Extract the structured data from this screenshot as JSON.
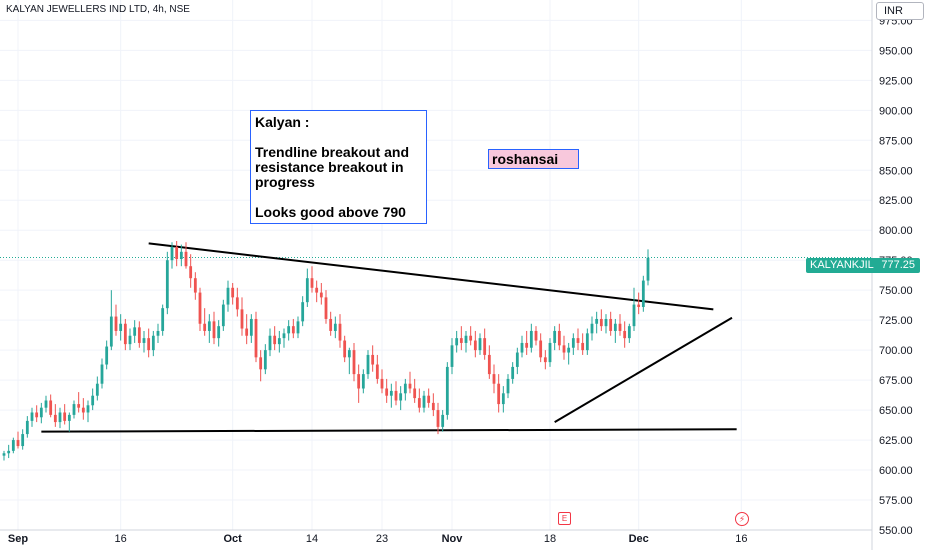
{
  "header": {
    "title": "KALYAN JEWELLERS IND LTD, 4h, NSE"
  },
  "currency": "INR",
  "annotation": {
    "lines": [
      "Kalyan :",
      "",
      "Trendline breakout and",
      "resistance breakout in",
      "progress",
      "",
      "Looks good above 790"
    ]
  },
  "author_label": "roshansai",
  "ticker": {
    "symbol": "KALYANKJIL",
    "price": "777.25"
  },
  "icons": {
    "earnings": "earnings-e-icon",
    "dividend": "dividend-lightning-icon"
  },
  "colors": {
    "up": "#26a69a",
    "down": "#ef5350",
    "tag": "#22ab94",
    "box_border": "#2962ff",
    "author_bg": "#f8c8dc"
  },
  "chart_data": {
    "type": "candlestick",
    "y_range": [
      550,
      992
    ],
    "x_range": [
      0,
      186
    ],
    "y_ticks": [
      "550.00",
      "575.00",
      "600.00",
      "625.00",
      "650.00",
      "675.00",
      "700.00",
      "725.00",
      "750.00",
      "775.00",
      "800.00",
      "825.00",
      "850.00",
      "875.00",
      "900.00",
      "925.00",
      "950.00",
      "975.00"
    ],
    "x_ticks": [
      {
        "label": "Sep",
        "index": 3
      },
      {
        "label": "16",
        "index": 25
      },
      {
        "label": "Oct",
        "index": 49
      },
      {
        "label": "14",
        "index": 66
      },
      {
        "label": "23",
        "index": 81
      },
      {
        "label": "Nov",
        "index": 96
      },
      {
        "label": "18",
        "index": 117
      },
      {
        "label": "Dec",
        "index": 136
      },
      {
        "label": "16",
        "index": 158
      }
    ],
    "last_price": 777.25,
    "candles": [
      [
        612,
        616,
        608,
        614
      ],
      [
        614,
        621,
        610,
        616
      ],
      [
        616,
        627,
        614,
        625
      ],
      [
        625,
        632,
        618,
        620
      ],
      [
        620,
        634,
        617,
        630
      ],
      [
        630,
        645,
        627,
        641
      ],
      [
        641,
        652,
        636,
        648
      ],
      [
        648,
        654,
        640,
        644
      ],
      [
        644,
        656,
        639,
        652
      ],
      [
        652,
        662,
        648,
        658
      ],
      [
        658,
        663,
        644,
        646
      ],
      [
        646,
        655,
        636,
        640
      ],
      [
        640,
        652,
        635,
        648
      ],
      [
        648,
        655,
        638,
        641
      ],
      [
        641,
        648,
        632,
        646
      ],
      [
        646,
        658,
        643,
        655
      ],
      [
        655,
        665,
        648,
        652
      ],
      [
        652,
        660,
        642,
        648
      ],
      [
        648,
        658,
        640,
        654
      ],
      [
        654,
        668,
        650,
        662
      ],
      [
        662,
        678,
        658,
        672
      ],
      [
        672,
        693,
        668,
        688
      ],
      [
        688,
        708,
        684,
        703
      ],
      [
        703,
        750,
        700,
        728
      ],
      [
        728,
        738,
        712,
        716
      ],
      [
        716,
        730,
        708,
        722
      ],
      [
        722,
        726,
        700,
        705
      ],
      [
        705,
        718,
        700,
        712
      ],
      [
        712,
        725,
        706,
        719
      ],
      [
        719,
        724,
        702,
        706
      ],
      [
        706,
        716,
        698,
        710
      ],
      [
        710,
        718,
        694,
        700
      ],
      [
        700,
        716,
        695,
        712
      ],
      [
        712,
        722,
        706,
        716
      ],
      [
        716,
        738,
        712,
        735
      ],
      [
        735,
        782,
        730,
        775
      ],
      [
        775,
        790,
        768,
        786
      ],
      [
        786,
        791,
        770,
        776
      ],
      [
        776,
        788,
        770,
        782
      ],
      [
        782,
        790,
        768,
        770
      ],
      [
        770,
        780,
        752,
        760
      ],
      [
        760,
        765,
        742,
        748
      ],
      [
        748,
        752,
        716,
        722
      ],
      [
        722,
        735,
        712,
        716
      ],
      [
        716,
        730,
        706,
        724
      ],
      [
        724,
        732,
        705,
        710
      ],
      [
        710,
        725,
        703,
        720
      ],
      [
        720,
        742,
        716,
        738
      ],
      [
        738,
        758,
        732,
        752
      ],
      [
        752,
        756,
        738,
        744
      ],
      [
        744,
        752,
        728,
        734
      ],
      [
        734,
        744,
        712,
        718
      ],
      [
        718,
        730,
        705,
        712
      ],
      [
        712,
        730,
        706,
        726
      ],
      [
        726,
        732,
        690,
        694
      ],
      [
        694,
        700,
        674,
        684
      ],
      [
        684,
        705,
        680,
        700
      ],
      [
        700,
        718,
        695,
        712
      ],
      [
        712,
        720,
        700,
        705
      ],
      [
        705,
        716,
        698,
        710
      ],
      [
        710,
        718,
        702,
        714
      ],
      [
        714,
        725,
        708,
        720
      ],
      [
        720,
        726,
        710,
        714
      ],
      [
        714,
        728,
        710,
        724
      ],
      [
        724,
        745,
        720,
        740
      ],
      [
        740,
        768,
        736,
        760
      ],
      [
        760,
        770,
        748,
        752
      ],
      [
        752,
        758,
        740,
        748
      ],
      [
        748,
        756,
        738,
        744
      ],
      [
        744,
        750,
        722,
        726
      ],
      [
        726,
        732,
        712,
        716
      ],
      [
        716,
        728,
        710,
        722
      ],
      [
        722,
        730,
        702,
        708
      ],
      [
        708,
        712,
        690,
        694
      ],
      [
        694,
        702,
        680,
        700
      ],
      [
        700,
        706,
        674,
        680
      ],
      [
        680,
        688,
        656,
        668
      ],
      [
        668,
        684,
        664,
        680
      ],
      [
        680,
        700,
        676,
        696
      ],
      [
        696,
        704,
        682,
        688
      ],
      [
        688,
        696,
        672,
        676
      ],
      [
        676,
        684,
        664,
        668
      ],
      [
        668,
        676,
        656,
        662
      ],
      [
        662,
        672,
        652,
        666
      ],
      [
        666,
        674,
        654,
        658
      ],
      [
        658,
        670,
        650,
        664
      ],
      [
        664,
        676,
        658,
        672
      ],
      [
        672,
        682,
        664,
        668
      ],
      [
        668,
        676,
        656,
        660
      ],
      [
        660,
        668,
        648,
        652
      ],
      [
        652,
        666,
        648,
        662
      ],
      [
        662,
        668,
        652,
        656
      ],
      [
        656,
        664,
        645,
        650
      ],
      [
        650,
        656,
        630,
        636
      ],
      [
        636,
        650,
        632,
        646
      ],
      [
        646,
        690,
        642,
        686
      ],
      [
        686,
        710,
        680,
        704
      ],
      [
        704,
        716,
        698,
        710
      ],
      [
        710,
        720,
        700,
        706
      ],
      [
        706,
        716,
        698,
        712
      ],
      [
        712,
        720,
        704,
        708
      ],
      [
        708,
        716,
        694,
        700
      ],
      [
        700,
        714,
        696,
        710
      ],
      [
        710,
        718,
        692,
        696
      ],
      [
        696,
        704,
        676,
        680
      ],
      [
        680,
        688,
        664,
        672
      ],
      [
        672,
        680,
        648,
        655
      ],
      [
        655,
        670,
        648,
        664
      ],
      [
        664,
        680,
        660,
        676
      ],
      [
        676,
        690,
        672,
        686
      ],
      [
        686,
        702,
        680,
        698
      ],
      [
        698,
        712,
        694,
        706
      ],
      [
        706,
        716,
        696,
        702
      ],
      [
        702,
        722,
        698,
        716
      ],
      [
        716,
        720,
        704,
        708
      ],
      [
        708,
        714,
        690,
        694
      ],
      [
        694,
        700,
        684,
        690
      ],
      [
        690,
        710,
        686,
        706
      ],
      [
        706,
        720,
        700,
        716
      ],
      [
        716,
        722,
        700,
        704
      ],
      [
        704,
        712,
        692,
        698
      ],
      [
        698,
        706,
        688,
        702
      ],
      [
        702,
        714,
        696,
        710
      ],
      [
        710,
        718,
        700,
        706
      ],
      [
        706,
        714,
        696,
        700
      ],
      [
        700,
        718,
        696,
        714
      ],
      [
        714,
        728,
        708,
        722
      ],
      [
        722,
        732,
        714,
        726
      ],
      [
        726,
        734,
        716,
        720
      ],
      [
        720,
        730,
        714,
        726
      ],
      [
        726,
        732,
        712,
        716
      ],
      [
        716,
        726,
        706,
        722
      ],
      [
        722,
        730,
        712,
        716
      ],
      [
        716,
        724,
        702,
        710
      ],
      [
        710,
        722,
        706,
        720
      ],
      [
        720,
        752,
        716,
        738
      ],
      [
        738,
        748,
        730,
        736
      ],
      [
        736,
        762,
        732,
        758
      ],
      [
        758,
        784,
        754,
        777
      ]
    ],
    "lines": [
      {
        "name": "resistance",
        "points": [
          [
            31,
            789
          ],
          [
            152,
            734
          ]
        ]
      },
      {
        "name": "support",
        "points": [
          [
            8,
            632
          ],
          [
            157,
            634
          ]
        ]
      },
      {
        "name": "rising-trendline",
        "points": [
          [
            118,
            640
          ],
          [
            156,
            727
          ]
        ]
      }
    ]
  }
}
